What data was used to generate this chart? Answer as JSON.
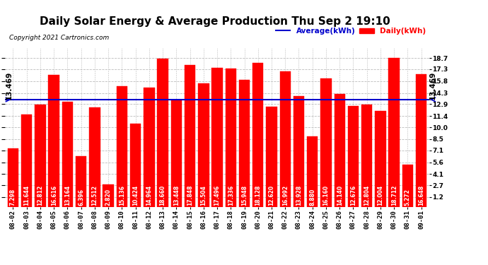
{
  "title": "Daily Solar Energy & Average Production Thu Sep 2 19:10",
  "copyright": "Copyright 2021 Cartronics.com",
  "average_label": "Average(kWh)",
  "daily_label": "Daily(kWh)",
  "average_value": 13.469,
  "average_label_left": "← 13.469",
  "average_label_right": "→ 13.469",
  "categories": [
    "08-02",
    "08-03",
    "08-04",
    "08-05",
    "08-06",
    "08-07",
    "08-08",
    "08-09",
    "08-10",
    "08-11",
    "08-12",
    "08-13",
    "08-14",
    "08-15",
    "08-16",
    "08-17",
    "08-18",
    "08-19",
    "08-20",
    "08-21",
    "08-22",
    "08-23",
    "08-24",
    "08-25",
    "08-26",
    "08-27",
    "08-28",
    "08-29",
    "08-30",
    "08-31",
    "09-01"
  ],
  "values": [
    7.298,
    11.644,
    12.812,
    16.616,
    13.164,
    6.396,
    12.512,
    2.82,
    15.136,
    10.424,
    14.964,
    18.66,
    13.448,
    17.848,
    15.504,
    17.496,
    17.336,
    15.948,
    18.128,
    12.62,
    16.992,
    13.928,
    8.88,
    16.16,
    14.14,
    12.676,
    12.804,
    12.004,
    18.712,
    5.272,
    16.648
  ],
  "bar_color": "#ff0000",
  "avg_line_color": "#0000cc",
  "background_color": "#ffffff",
  "grid_color": "#bbbbbb",
  "ylim_min": 0,
  "ylim_max": 20.0,
  "yticks": [
    1.2,
    2.7,
    4.1,
    5.6,
    7.1,
    8.5,
    10.0,
    11.4,
    12.9,
    14.3,
    15.8,
    17.3,
    18.7
  ],
  "title_fontsize": 11,
  "tick_fontsize": 6.5,
  "bar_label_fontsize": 5.5,
  "avg_fontsize": 7.5
}
